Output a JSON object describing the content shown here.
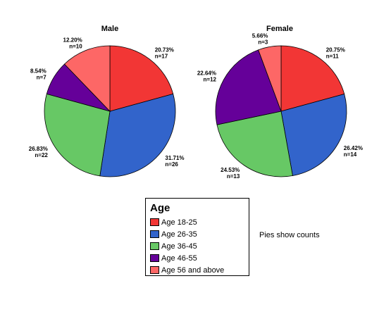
{
  "chart_data": [
    {
      "type": "pie",
      "title": "Male",
      "categories": [
        "Age 18-25",
        "Age 26-35",
        "Age 36-45",
        "Age 46-55",
        "Age 56 and above"
      ],
      "values": [
        17,
        26,
        22,
        7,
        10
      ],
      "percent_labels": [
        "20.73%",
        "31.71%",
        "26.83%",
        "8.54%",
        "12.20%"
      ],
      "count_labels": [
        "n=17",
        "n=26",
        "n=22",
        "n=7",
        "n=10"
      ]
    },
    {
      "type": "pie",
      "title": "Female",
      "categories": [
        "Age 18-25",
        "Age 26-35",
        "Age 36-45",
        "Age 46-55",
        "Age 56 and above"
      ],
      "values": [
        11,
        14,
        13,
        12,
        3
      ],
      "percent_labels": [
        "20.75%",
        "26.42%",
        "24.53%",
        "22.64%",
        "5.66%"
      ],
      "count_labels": [
        "n=11",
        "n=14",
        "n=13",
        "n=12",
        "n=3"
      ]
    }
  ],
  "legend": {
    "title": "Age",
    "items": [
      {
        "label": "Age 18-25",
        "color": "#f23635"
      },
      {
        "label": "Age 26-35",
        "color": "#3264cb"
      },
      {
        "label": "Age 36-45",
        "color": "#67c865"
      },
      {
        "label": "Age 46-55",
        "color": "#650099"
      },
      {
        "label": "Age 56 and above",
        "color": "#fd6766"
      }
    ]
  },
  "footnote": "Pies show counts"
}
